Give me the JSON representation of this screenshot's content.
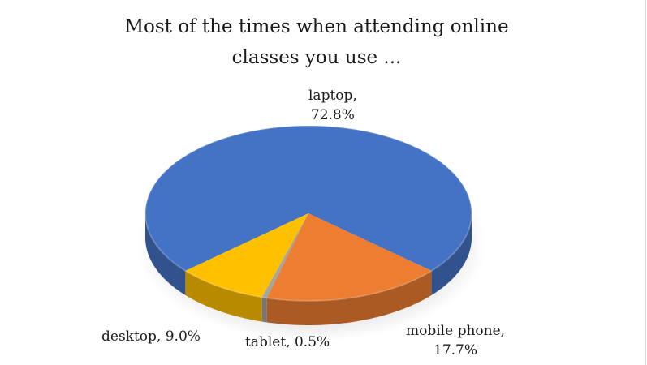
{
  "chart_data": {
    "type": "pie",
    "title": "Most of the times when attending online classes you use ...",
    "legend": "none",
    "style": "3d",
    "slices": [
      {
        "name": "laptop",
        "value": 72.8,
        "label_name": "laptop,",
        "label_value": "72.8%",
        "color": "#4472C4"
      },
      {
        "name": "mobile phone",
        "value": 17.7,
        "label_name": "mobile phone,",
        "label_value": "17.7%",
        "color": "#ED7D31"
      },
      {
        "name": "tablet",
        "value": 0.5,
        "label_name": "tablet, 0.5%",
        "label_value": "",
        "color": "#A5A5A5"
      },
      {
        "name": "desktop",
        "value": 9.0,
        "label_name": "desktop, 9.0%",
        "label_value": "",
        "color": "#FFC000"
      }
    ]
  }
}
